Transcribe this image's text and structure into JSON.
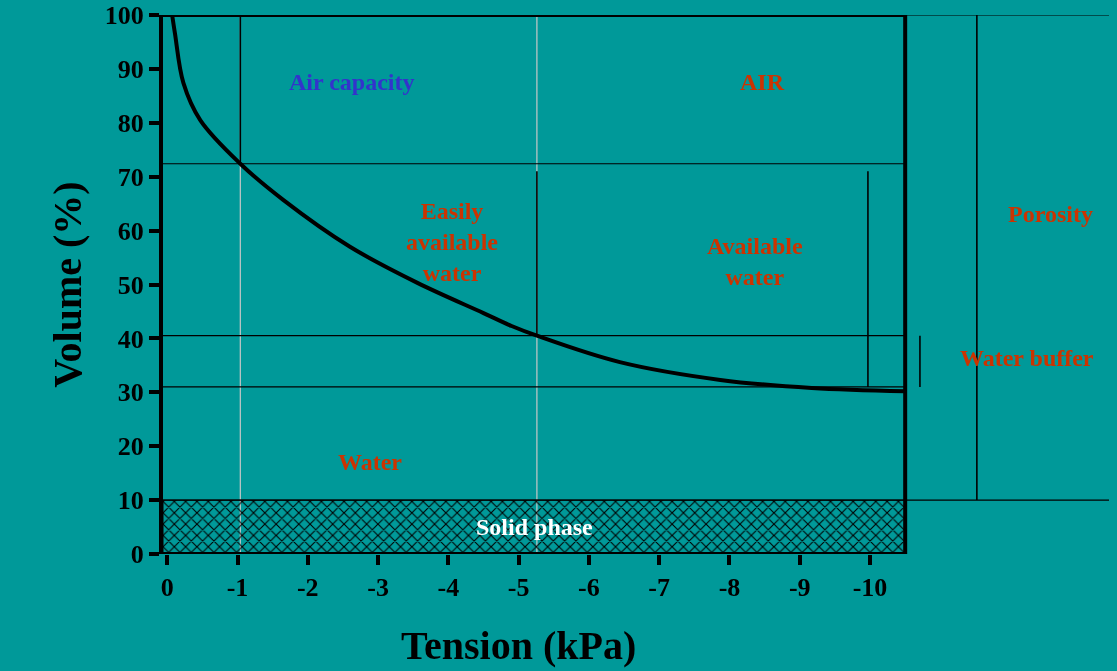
{
  "chart_data": {
    "type": "line",
    "xlabel": "Tension (kPa)",
    "ylabel": "Volume (%)",
    "xlim": [
      0.06,
      -13.4
    ],
    "ylim": [
      0,
      100
    ],
    "xticks": [
      0,
      -1,
      -2,
      -3,
      -4,
      -5,
      -6,
      -7,
      -8,
      -9,
      -10
    ],
    "yticks": [
      0,
      10,
      20,
      30,
      40,
      50,
      60,
      70,
      80,
      90,
      100
    ],
    "grid": false,
    "marker": "none",
    "line_style": "solid",
    "series": [
      {
        "color": "#000000",
        "x": [
          -0.07,
          -0.11,
          -0.23,
          -0.47,
          -1.04,
          -1.65,
          -2.6,
          -3.56,
          -4.5,
          -4.9,
          -5.26,
          -6.44,
          -7.87,
          -9.17,
          -10.5
        ],
        "values": [
          100,
          96.6,
          87.4,
          80.5,
          72.4,
          65.7,
          57,
          50.3,
          44.7,
          42.3,
          40.5,
          35.6,
          32.3,
          30.8,
          30.2
        ]
      },
      {
        "color": "#000000",
        "x": [
          -1.04,
          -1.04
        ],
        "values": [
          72.4,
          100
        ]
      },
      {
        "color": "#000000",
        "x": [
          -5.26,
          -5.26
        ],
        "values": [
          40.5,
          71
        ]
      },
      {
        "color": "#000000",
        "x": [
          -9.97,
          -9.97
        ],
        "values": [
          31,
          71
        ]
      },
      {
        "color": "#000000",
        "x": [
          -10.71,
          -10.71
        ],
        "values": [
          31,
          40.5
        ]
      },
      {
        "color": "#000000",
        "x": [
          -11.52,
          -11.52
        ],
        "values": [
          10,
          100
        ]
      }
    ],
    "ref_lines": [
      {
        "axis": "x",
        "value": -1.04,
        "color": "#c8c8c8",
        "line_style": "solid"
      },
      {
        "axis": "x",
        "value": -5.26,
        "color": "#c8c8c8",
        "line_style": "solid"
      },
      {
        "axis": "x",
        "value": -10.5,
        "color": "#000000",
        "line_style": "solid"
      },
      {
        "axis": "y",
        "value": 100,
        "color": "#000000",
        "line_style": "solid"
      },
      {
        "axis": "y",
        "value": 72.4,
        "color": "#000000",
        "line_style": "solid"
      },
      {
        "axis": "y",
        "value": 40.5,
        "color": "#000000",
        "line_style": "solid"
      },
      {
        "axis": "y",
        "value": 31,
        "color": "#000000",
        "line_style": "solid"
      },
      {
        "axis": "y",
        "value": 10,
        "color": "#000000",
        "line_style": "solid"
      }
    ],
    "bands": [
      {
        "axis": "y",
        "from": 0,
        "to": 10,
        "label": "Solid phase",
        "color": "#000000"
      }
    ],
    "annotations": [
      "Air capacity",
      "AIR",
      "Easily\navailable\nwater",
      "Available\nwater",
      "Water",
      "Porosity",
      "Water buffer"
    ]
  }
}
